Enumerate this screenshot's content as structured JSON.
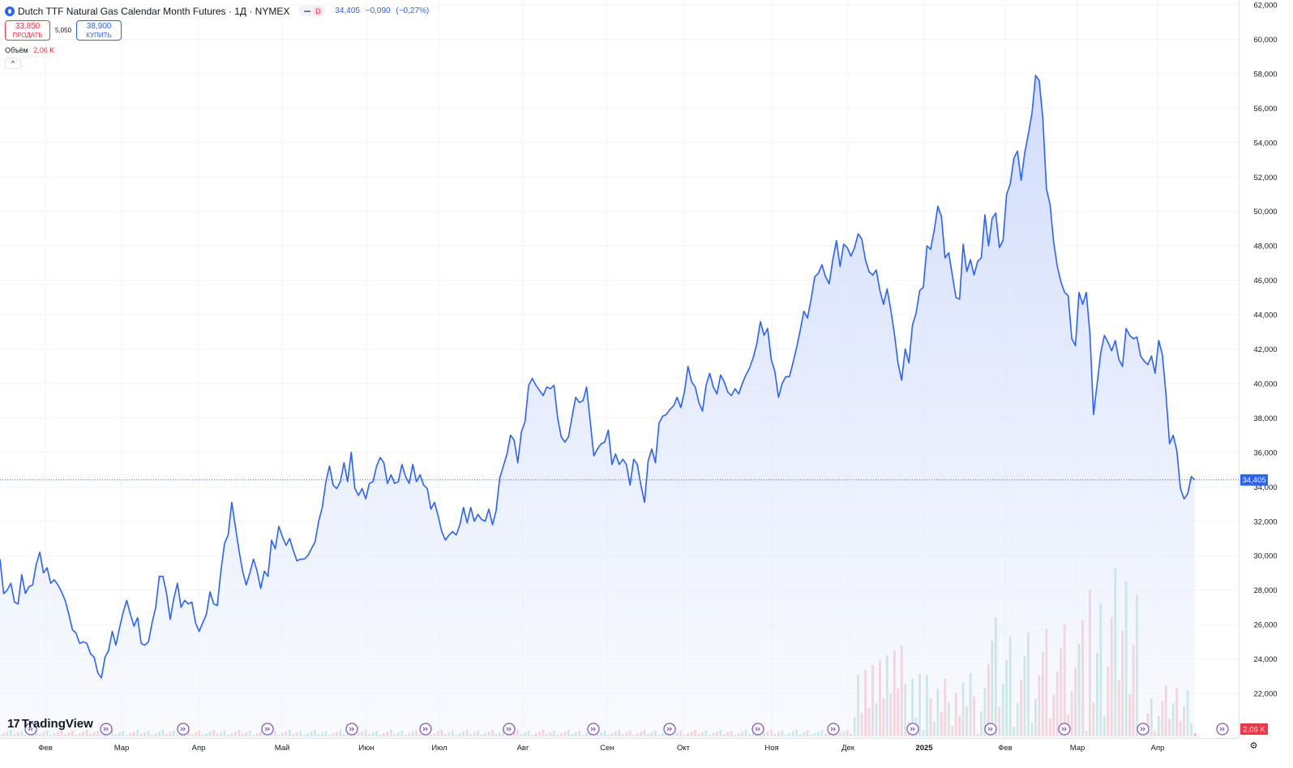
{
  "header": {
    "title": "Dutch TTF Natural Gas Calendar Month Futures · 1Д · NYMEX",
    "interval_tag": "D",
    "last": "34,405",
    "change": "−0,090",
    "change_pct": "(−0,27%)"
  },
  "trade": {
    "sell_price": "33,850",
    "sell_label": "ПРОДАТЬ",
    "spread": "5,050",
    "buy_price": "38,900",
    "buy_label": "КУПИТЬ"
  },
  "volume": {
    "label": "Объём",
    "value": "2,06 K"
  },
  "collapse_glyph": "^",
  "logo": {
    "mark": "17",
    "text": "TradingView"
  },
  "colors": {
    "line": "#2962ff",
    "fill": "#dce5fc",
    "vol_up": "#8fd1c4",
    "vol_down": "#f7a1a6",
    "axis_text": "#131722",
    "grid": "#f0f3fa",
    "event_icon": "#7e57c2"
  },
  "chart_data": {
    "type": "area",
    "y_range": [
      20000,
      62000
    ],
    "yticks": [
      "62,000",
      "60,000",
      "58,000",
      "56,000",
      "54,000",
      "52,000",
      "50,000",
      "48,000",
      "46,000",
      "44,000",
      "42,000",
      "40,000",
      "38,000",
      "36,000",
      "34,000",
      "32,000",
      "30,000",
      "28,000",
      "26,000",
      "24,000",
      "22,000"
    ],
    "ytick_values": [
      62,
      60,
      58,
      56,
      54,
      52,
      50,
      48,
      46,
      44,
      42,
      40,
      38,
      36,
      34,
      32,
      30,
      28,
      26,
      24,
      22
    ],
    "month_labels": [
      "Фев",
      "Мар",
      "Апр",
      "Май",
      "Июн",
      "Июл",
      "Авг",
      "Сен",
      "Окт",
      "Ноя",
      "Дек",
      "2025",
      "Фев",
      "Мар",
      "Апр"
    ],
    "last_price_label": "34,405",
    "last_price": 34.405,
    "volume_label": "2,06 K",
    "series": [
      {
        "values": [
          29.8,
          27.8,
          28.0,
          28.4,
          27.3,
          27.2,
          28.9,
          27.8,
          28.2,
          28.3,
          29.5,
          30.2,
          29.0,
          29.3,
          28.4,
          28.6,
          28.3,
          27.9,
          27.4,
          26.6,
          25.7,
          25.5,
          24.9,
          25.0,
          24.9,
          24.3,
          24.1,
          23.2,
          22.9,
          24.1,
          24.5,
          25.6,
          24.8,
          25.8,
          26.7,
          27.4,
          26.6,
          25.9,
          26.4,
          24.9,
          24.8,
          25.0,
          26.1,
          27.0,
          28.8,
          28.8,
          27.8,
          26.3,
          27.5,
          28.4,
          27.0,
          27.4,
          27.2,
          27.3,
          26.1,
          25.6,
          26.1,
          26.6,
          27.9,
          27.2,
          27.1,
          29.1,
          30.7,
          31.2,
          33.1,
          31.7,
          30.3,
          29.1,
          28.3,
          29.0,
          29.8,
          29.1,
          28.1,
          29.1,
          28.8,
          30.9,
          30.4,
          31.7,
          31.1,
          30.6,
          31.0,
          30.3,
          29.7,
          29.8,
          29.8,
          30.0,
          30.4,
          30.8,
          32.0,
          32.8,
          34.3,
          35.2,
          34.1,
          33.9,
          34.3,
          35.4,
          34.3,
          36.0,
          33.9,
          33.5,
          33.9,
          33.3,
          34.2,
          34.3,
          35.2,
          35.7,
          35.4,
          34.2,
          34.7,
          34.2,
          34.3,
          35.3,
          34.6,
          34.2,
          35.3,
          34.3,
          34.7,
          34.1,
          33.9,
          32.7,
          33.1,
          32.3,
          31.4,
          30.9,
          31.2,
          31.4,
          31.2,
          31.8,
          32.8,
          31.9,
          32.8,
          32.0,
          32.4,
          32.1,
          32.0,
          32.7,
          31.8,
          32.6,
          34.5,
          35.2,
          35.9,
          37.0,
          36.7,
          35.4,
          37.2,
          37.8,
          39.9,
          40.3,
          39.9,
          39.6,
          39.3,
          39.8,
          39.7,
          39.9,
          38.0,
          36.9,
          36.6,
          36.9,
          38.1,
          39.2,
          38.9,
          39.0,
          39.8,
          37.8,
          35.8,
          36.2,
          36.5,
          36.6,
          37.3,
          35.3,
          35.9,
          35.3,
          35.6,
          35.3,
          34.1,
          35.6,
          35.3,
          34.1,
          33.1,
          35.5,
          36.2,
          35.4,
          37.7,
          38.1,
          38.2,
          38.5,
          38.7,
          39.2,
          38.6,
          39.5,
          41.0,
          40.1,
          39.8,
          38.9,
          38.4,
          39.9,
          40.6,
          39.8,
          39.4,
          40.5,
          40.1,
          39.5,
          39.3,
          39.7,
          39.4,
          40.0,
          40.5,
          40.9,
          41.5,
          42.3,
          43.6,
          42.8,
          43.2,
          41.4,
          40.7,
          39.2,
          40.0,
          40.4,
          40.4,
          41.2,
          42.1,
          43.1,
          44.2,
          43.8,
          44.9,
          46.2,
          46.4,
          46.9,
          46.2,
          45.8,
          47.2,
          48.3,
          46.8,
          48.1,
          47.9,
          47.4,
          47.9,
          48.7,
          48.4,
          47.2,
          46.5,
          46.3,
          46.6,
          45.4,
          44.6,
          45.5,
          44.3,
          42.9,
          41.2,
          40.2,
          42.0,
          41.2,
          43.4,
          44.1,
          45.4,
          45.6,
          48.0,
          47.8,
          48.9,
          50.3,
          49.7,
          47.3,
          47.6,
          46.3,
          45.0,
          44.9,
          48.1,
          46.5,
          47.2,
          46.3,
          47.1,
          47.3,
          49.8,
          48.0,
          49.6,
          49.9,
          47.9,
          48.3,
          51.0,
          51.6,
          53.1,
          53.5,
          51.8,
          53.4,
          54.5,
          55.7,
          57.9,
          57.6,
          55.4,
          51.3,
          50.4,
          48.2,
          46.8,
          45.9,
          45.3,
          45.1,
          42.6,
          42.2,
          45.3,
          44.6,
          45.3,
          42.9,
          38.2,
          40.0,
          41.8,
          42.8,
          42.4,
          41.9,
          42.5,
          41.4,
          41.0,
          43.2,
          42.8,
          42.6,
          42.7,
          41.6,
          41.3,
          41.1,
          41.6,
          40.6,
          42.5,
          41.7,
          39.4,
          36.5,
          37.0,
          36.1,
          33.9,
          33.3,
          33.6,
          34.6,
          34.4
        ]
      }
    ]
  }
}
